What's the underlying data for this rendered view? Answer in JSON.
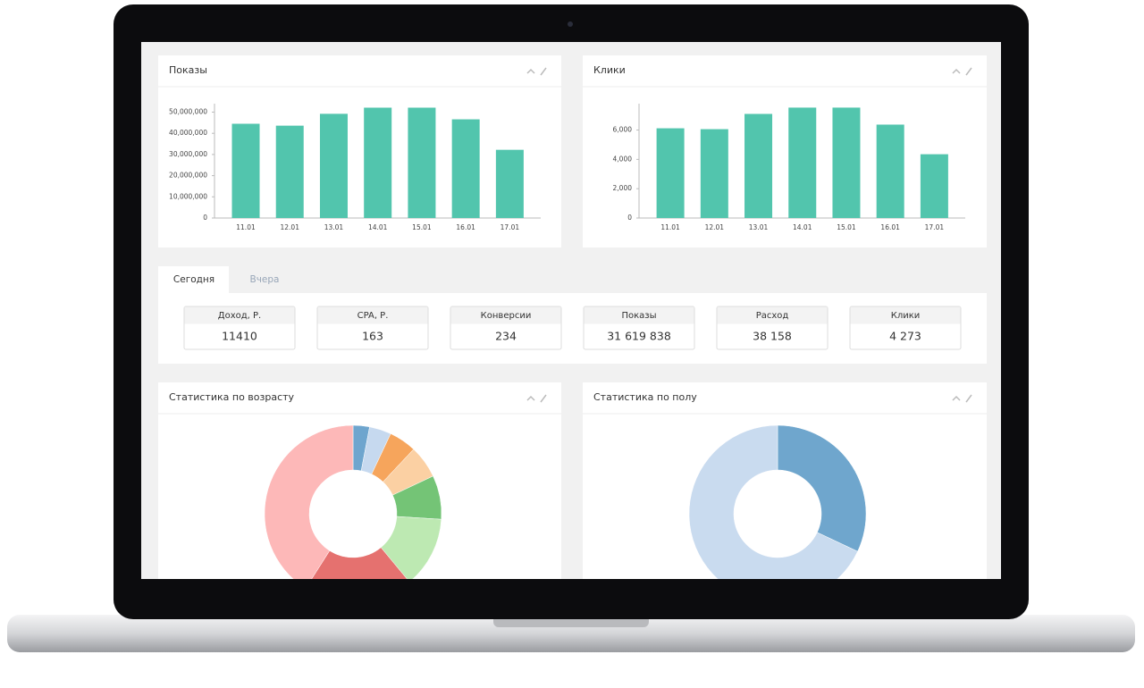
{
  "chart_data": [
    {
      "type": "bar",
      "title": "Показы",
      "categories": [
        "11.01",
        "12.01",
        "13.01",
        "14.01",
        "15.01",
        "16.01",
        "17.01"
      ],
      "values": [
        44500000,
        43600000,
        49200000,
        52100000,
        52100000,
        46600000,
        32200000
      ],
      "color": "#52c5ad",
      "ylim": [
        0,
        54000000
      ],
      "yticks": [
        0,
        {
          "value": 10000000,
          "label": "10,000,000"
        },
        {
          "value": 20000000,
          "label": "20,000,000"
        },
        {
          "value": 30000000,
          "label": "30,000,000"
        },
        {
          "value": 40000000,
          "label": "40,000,000"
        },
        {
          "value": 50000000,
          "label": "50,000,000"
        }
      ]
    },
    {
      "type": "bar",
      "title": "Клики",
      "categories": [
        "11.01",
        "12.01",
        "13.01",
        "14.01",
        "15.01",
        "16.01",
        "17.01"
      ],
      "values": [
        6120,
        6060,
        7100,
        7530,
        7530,
        6370,
        4350
      ],
      "color": "#52c5ad",
      "ylim": [
        0,
        7800
      ],
      "yticks": [
        0,
        {
          "value": 2000,
          "label": "2,000"
        },
        {
          "value": 4000,
          "label": "4,000"
        },
        {
          "value": 6000,
          "label": "6,000"
        }
      ]
    },
    {
      "type": "pie",
      "title": "Статистика по возрасту",
      "values": [
        3,
        4,
        5,
        6,
        8,
        13,
        20,
        41
      ],
      "colors": [
        "#6ea5ce",
        "#c6d9ef",
        "#f6a55c",
        "#fbd0a3",
        "#74c476",
        "#bde9b2",
        "#e5716f",
        "#fdb8b8"
      ]
    },
    {
      "type": "pie",
      "title": "Статистика по полу",
      "values": [
        32,
        68
      ],
      "colors": [
        "#6fa6cd",
        "#c9dbef"
      ]
    }
  ],
  "tabs": [
    "Сегодня",
    "Вчера"
  ],
  "metrics": [
    {
      "label": "Доход, Р.",
      "value": "11410"
    },
    {
      "label": "CPA, Р.",
      "value": "163"
    },
    {
      "label": "Конверсии",
      "value": "234"
    },
    {
      "label": "Показы",
      "value": "31 619 838"
    },
    {
      "label": "Расход",
      "value": "38 158"
    },
    {
      "label": "Клики",
      "value": "4 273"
    }
  ]
}
